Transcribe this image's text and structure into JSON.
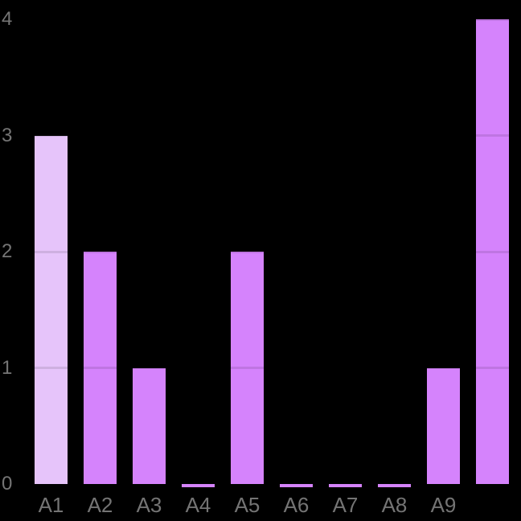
{
  "page": {
    "background": "#000000"
  },
  "chart_data": {
    "type": "bar",
    "title": "",
    "xlabel": "",
    "ylabel": "",
    "categories": [
      "A1",
      "A2",
      "A3",
      "A4",
      "A5",
      "A6",
      "A7",
      "A8",
      "A9",
      ""
    ],
    "values": [
      3,
      2,
      1,
      0,
      2,
      0,
      0,
      0,
      1,
      4
    ],
    "ylim": [
      0,
      4
    ],
    "yticks": [
      "0",
      "1",
      "2",
      "3",
      "4"
    ],
    "grid": true,
    "legend_position": "none",
    "colors": {
      "background": "#000000",
      "bar_default": "#d583fc",
      "bar_highlight": "#e6c4fa",
      "gridline_overlay": "rgba(0,0,0,0.10)",
      "tick_label_y": "#757575",
      "tick_label_x": "#747474"
    },
    "bar_colors": [
      "#e6c4fa",
      "#d583fc",
      "#d583fc",
      "#d583fc",
      "#d583fc",
      "#d583fc",
      "#d583fc",
      "#d583fc",
      "#d583fc",
      "#d583fc"
    ]
  }
}
